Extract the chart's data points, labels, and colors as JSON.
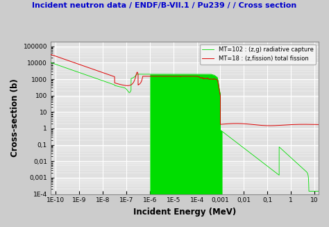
{
  "title": "Incident neutron data / ENDF/B-VII.1 / Pu239 / / Cross section",
  "xlabel": "Incident Energy (MeV)",
  "ylabel": "Cross-section (b)",
  "title_color": "#0000CC",
  "bg_color": "#e0e0e0",
  "grid_color": "#ffffff",
  "legend1_label": "MT=102 : (z,g) radiative capture",
  "legend2_label": "MT=18 : (z,fission) total fission",
  "capture_color": "#00dd00",
  "fission_color": "#dd0000",
  "ytick_labels": [
    "1E-4",
    "0,001",
    "0,01",
    "0,1",
    "1",
    "10",
    "100",
    "1000",
    "10000",
    "100000"
  ],
  "ytick_values": [
    0.0001,
    0.001,
    0.01,
    0.1,
    1.0,
    10.0,
    100.0,
    1000.0,
    10000.0,
    100000.0
  ],
  "xtick_labels": [
    "1E-10",
    "1E-9",
    "1E-8",
    "1E-7",
    "1E-6",
    "1E-5",
    "1E-4",
    "0,001",
    "0,01",
    "0,1",
    "1",
    "10"
  ],
  "xtick_values": [
    1e-10,
    1e-09,
    1e-08,
    1e-07,
    1e-06,
    1e-05,
    0.0001,
    0.001,
    0.01,
    0.1,
    1.0,
    10.0
  ]
}
